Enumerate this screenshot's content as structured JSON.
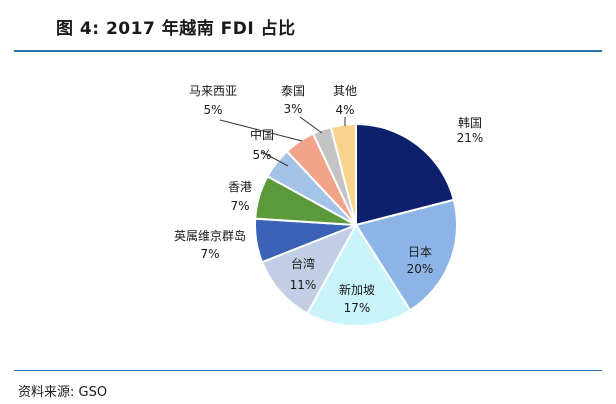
{
  "header": {
    "title": "图 4:  2017 年越南 FDI 占比"
  },
  "footer": {
    "source": "资料来源:  GSO"
  },
  "chart_data": {
    "type": "pie",
    "title": "图 4:  2017 年越南 FDI 占比",
    "unit": "%",
    "legend": "none",
    "slices": [
      {
        "name": "韩国",
        "value": 21,
        "label": "21%",
        "color": "#0e1f6e"
      },
      {
        "name": "日本",
        "value": 20,
        "label": "20%",
        "color": "#8db4e6"
      },
      {
        "name": "新加坡",
        "value": 17,
        "label": "17%",
        "color": "#c9f4fb"
      },
      {
        "name": "台湾",
        "value": 11,
        "label": "11%",
        "color": "#c2cde6"
      },
      {
        "name": "英属维京群岛",
        "value": 7,
        "label": "7%",
        "color": "#3a63b8"
      },
      {
        "name": "香港",
        "value": 7,
        "label": "7%",
        "color": "#5a9a3a"
      },
      {
        "name": "中国",
        "value": 5,
        "label": "5%",
        "color": "#a4c3e6"
      },
      {
        "name": "马来西亚",
        "value": 5,
        "label": "5%",
        "color": "#f2a48a"
      },
      {
        "name": "泰国",
        "value": 3,
        "label": "3%",
        "color": "#c4c4c4"
      },
      {
        "name": "其他",
        "value": 4,
        "label": "4%",
        "color": "#fad38c"
      }
    ]
  }
}
